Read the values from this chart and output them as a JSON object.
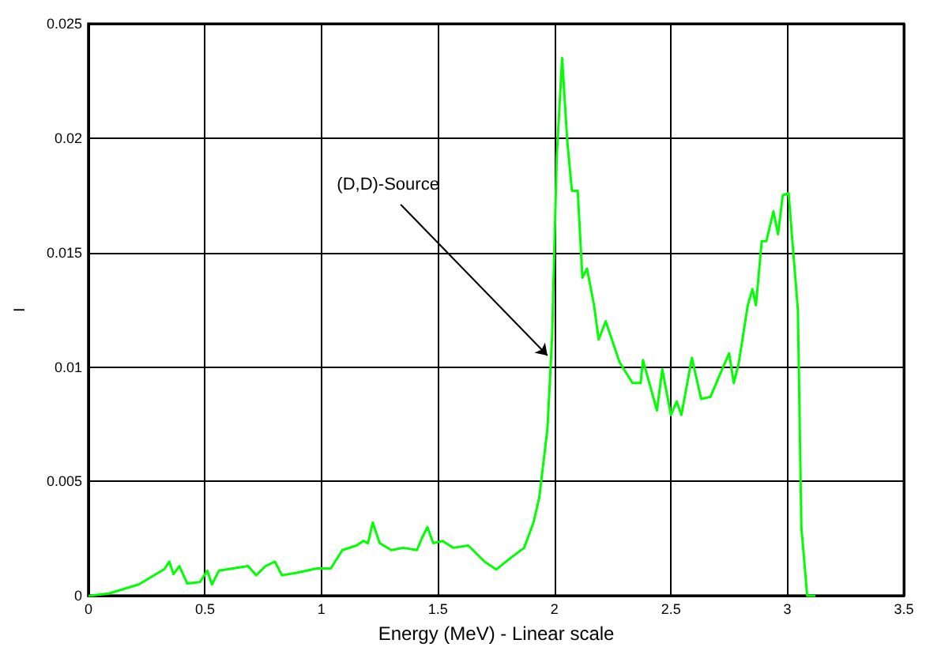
{
  "chart_data": {
    "type": "line",
    "xlabel": "Energy (MeV) - Linear scale",
    "ylabel": "I",
    "series": [
      {
        "color": "#00ff00",
        "x": [
          0,
          0.087,
          0.216,
          0.326,
          0.347,
          0.365,
          0.39,
          0.424,
          0.478,
          0.51,
          0.53,
          0.56,
          0.685,
          0.72,
          0.76,
          0.8,
          0.83,
          0.89,
          0.98,
          1.04,
          1.09,
          1.15,
          1.18,
          1.2,
          1.22,
          1.25,
          1.3,
          1.35,
          1.41,
          1.43,
          1.455,
          1.48,
          1.52,
          1.565,
          1.63,
          1.7,
          1.75,
          1.805,
          1.87,
          1.91,
          1.935,
          1.97,
          1.99,
          2.01,
          2.033,
          2.055,
          2.075,
          2.1,
          2.12,
          2.14,
          2.17,
          2.19,
          2.22,
          2.25,
          2.28,
          2.335,
          2.37,
          2.38,
          2.44,
          2.463,
          2.5,
          2.525,
          2.545,
          2.59,
          2.63,
          2.67,
          2.72,
          2.75,
          2.77,
          2.79,
          2.83,
          2.85,
          2.865,
          2.89,
          2.91,
          2.94,
          2.96,
          2.98,
          3.005,
          3.045,
          3.06,
          3.085,
          3.12
        ],
        "values": [
          0,
          0.0001,
          0.0005,
          0.00117,
          0.0015,
          0.00095,
          0.0013,
          0.00054,
          0.0006,
          0.0011,
          0.0005,
          0.0011,
          0.0013,
          0.0009,
          0.0013,
          0.0015,
          0.0009,
          0.001,
          0.0012,
          0.0012,
          0.002,
          0.0022,
          0.0024,
          0.0023,
          0.0032,
          0.0023,
          0.002,
          0.0021,
          0.002,
          0.0025,
          0.003,
          0.0023,
          0.0024,
          0.0021,
          0.0022,
          0.0015,
          0.00115,
          0.0016,
          0.0021,
          0.0032,
          0.0043,
          0.0073,
          0.0113,
          0.0192,
          0.0235,
          0.0199,
          0.0177,
          0.0177,
          0.0139,
          0.0143,
          0.0127,
          0.0112,
          0.012,
          0.0111,
          0.0102,
          0.0093,
          0.0093,
          0.0103,
          0.0081,
          0.0099,
          0.0079,
          0.0085,
          0.0079,
          0.0104,
          0.0086,
          0.0087,
          0.0099,
          0.0106,
          0.0093,
          0.0101,
          0.0127,
          0.0134,
          0.0127,
          0.0155,
          0.0155,
          0.0168,
          0.0158,
          0.0175,
          0.0176,
          0.0125,
          0.003,
          0,
          0
        ]
      }
    ],
    "xlim": [
      0,
      3.5
    ],
    "xticks": [
      0,
      0.5,
      1,
      1.5,
      2,
      2.5,
      3,
      3.5
    ],
    "ylim": [
      0,
      0.025
    ],
    "yticks": [
      0,
      0.005,
      0.01,
      0.015,
      0.02,
      0.025
    ],
    "grid": true,
    "marker": "none",
    "line_style": "solid",
    "annotations": [
      {
        "text": "(D,D)-Source",
        "x": 1.97,
        "y": 0.0105
      }
    ]
  }
}
